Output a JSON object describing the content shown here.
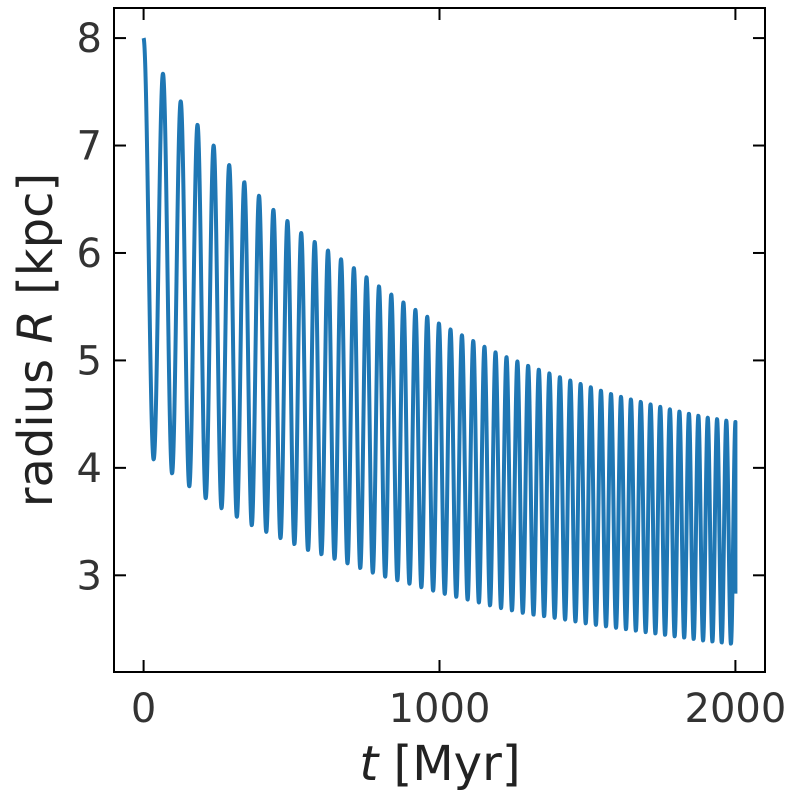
{
  "chart_data": {
    "type": "line",
    "title": "",
    "xlabel_var": "t",
    "xlabel_unit": "[Myr]",
    "ylabel_prefix": "radius",
    "ylabel_var": "R",
    "ylabel_unit": "[kpc]",
    "xlim": [
      -100,
      2100
    ],
    "ylim": [
      2.1,
      8.28
    ],
    "xticks": [
      0,
      1000,
      2000
    ],
    "xtick_labels": [
      "0",
      "1000",
      "2000"
    ],
    "yticks": [
      3,
      4,
      5,
      6,
      7,
      8
    ],
    "ytick_labels": [
      "3",
      "4",
      "5",
      "6",
      "7",
      "8"
    ],
    "grid": false,
    "legend": "none",
    "line_color": "#1f77b4",
    "series": [
      {
        "orbit_time_range": [
          0,
          2000
        ],
        "start_radius": 8.0,
        "end_radius": 2.83,
        "peaks": [
          {
            "t": 0,
            "R": 8.0
          },
          {
            "t": 75,
            "R": 7.62
          },
          {
            "t": 145,
            "R": 7.33
          },
          {
            "t": 210,
            "R": 7.09
          },
          {
            "t": 272,
            "R": 6.88
          },
          {
            "t": 320,
            "R": 6.71
          },
          {
            "t": 380,
            "R": 6.56
          },
          {
            "t": 430,
            "R": 6.42
          },
          {
            "t": 485,
            "R": 6.3
          },
          {
            "t": 530,
            "R": 6.19
          },
          {
            "t": 580,
            "R": 6.1
          },
          {
            "t": 630,
            "R": 6.01
          },
          {
            "t": 700,
            "R": 5.88
          },
          {
            "t": 800,
            "R": 5.68
          },
          {
            "t": 900,
            "R": 5.5
          },
          {
            "t": 1000,
            "R": 5.34
          },
          {
            "t": 1100,
            "R": 5.2
          },
          {
            "t": 1200,
            "R": 5.06
          },
          {
            "t": 1300,
            "R": 4.95
          },
          {
            "t": 1400,
            "R": 4.85
          },
          {
            "t": 1500,
            "R": 4.76
          },
          {
            "t": 1600,
            "R": 4.67
          },
          {
            "t": 1700,
            "R": 4.6
          },
          {
            "t": 1800,
            "R": 4.53
          },
          {
            "t": 1900,
            "R": 4.47
          },
          {
            "t": 1990,
            "R": 4.43
          }
        ],
        "troughs": [
          {
            "t": 35,
            "R": 4.08
          },
          {
            "t": 110,
            "R": 3.92
          },
          {
            "t": 178,
            "R": 3.78
          },
          {
            "t": 240,
            "R": 3.66
          },
          {
            "t": 300,
            "R": 3.57
          },
          {
            "t": 355,
            "R": 3.48
          },
          {
            "t": 410,
            "R": 3.41
          },
          {
            "t": 460,
            "R": 3.35
          },
          {
            "t": 510,
            "R": 3.29
          },
          {
            "t": 560,
            "R": 3.23
          },
          {
            "t": 620,
            "R": 3.18
          },
          {
            "t": 700,
            "R": 3.1
          },
          {
            "t": 800,
            "R": 3.0
          },
          {
            "t": 900,
            "R": 2.92
          },
          {
            "t": 1000,
            "R": 2.84
          },
          {
            "t": 1100,
            "R": 2.77
          },
          {
            "t": 1200,
            "R": 2.7
          },
          {
            "t": 1300,
            "R": 2.64
          },
          {
            "t": 1400,
            "R": 2.6
          },
          {
            "t": 1500,
            "R": 2.55
          },
          {
            "t": 1600,
            "R": 2.51
          },
          {
            "t": 1700,
            "R": 2.47
          },
          {
            "t": 1800,
            "R": 2.43
          },
          {
            "t": 1900,
            "R": 2.39
          },
          {
            "t": 1995,
            "R": 2.36
          }
        ]
      }
    ]
  }
}
